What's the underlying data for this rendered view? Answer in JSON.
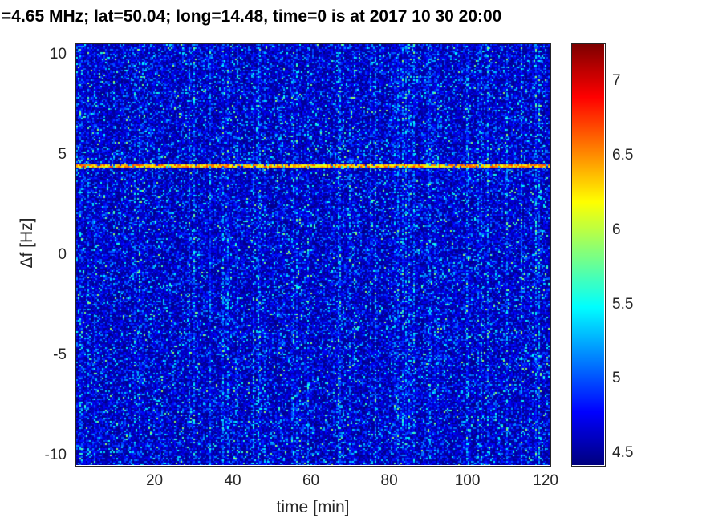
{
  "chart_data": {
    "type": "heatmap",
    "title": "=4.65 MHz;  lat=50.04; long=14.48, time=0 is at 2017 10 30 20:00",
    "xlabel": "time [min]",
    "ylabel": "Δf [Hz]",
    "x_range": [
      0,
      121
    ],
    "x_ticks": [
      20,
      40,
      60,
      80,
      100,
      120
    ],
    "y_range": [
      -10.5,
      10.5
    ],
    "y_ticks": [
      -10,
      -5,
      0,
      5,
      10
    ],
    "grid": false,
    "colorbar": {
      "colormap": "jet",
      "range": [
        4.42,
        7.25
      ],
      "ticks": [
        4.5,
        5,
        5.5,
        6,
        6.5,
        7
      ],
      "position": "right"
    },
    "signal_line": {
      "freq_hz": 4.45,
      "intensity": 6.25
    },
    "noise": {
      "background_level": 4.45,
      "speckle_max": 5.9
    },
    "colors": {
      "background_dark_blue": "#00008f",
      "speckle_cyan": "#00d5ff",
      "line_yellow": "#e8ff00",
      "axis_text": "#262626",
      "title_text": "#000000"
    }
  }
}
